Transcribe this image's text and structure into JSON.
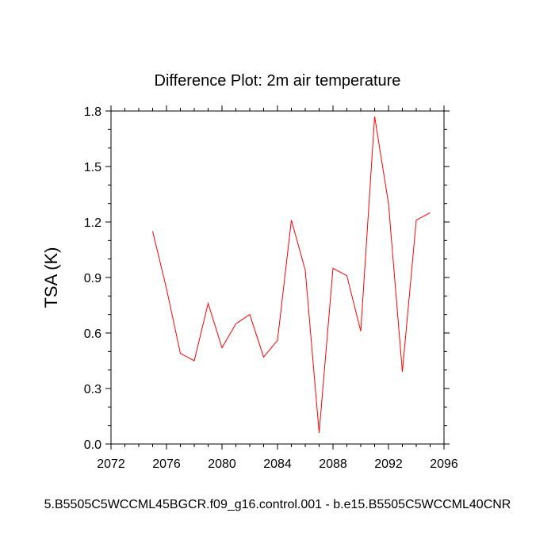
{
  "chart_data": {
    "type": "line",
    "title": "Difference Plot: 2m air temperature",
    "xlabel": "",
    "ylabel": "TSA  (K)",
    "subtitle": "5.B5505C5WCCML45BGCR.f09_g16.control.001 - b.e15.B5505C5WCCML40CNR",
    "xlim": [
      2072,
      2096
    ],
    "ylim": [
      0.0,
      1.8
    ],
    "xticks": [
      2072,
      2076,
      2080,
      2084,
      2088,
      2092,
      2096
    ],
    "yticks": [
      "0.0",
      "0.3",
      "0.6",
      "0.9",
      "1.2",
      "1.5",
      "1.8"
    ],
    "grid": false,
    "series": [
      {
        "color": "#ff0000",
        "x": [
          2075,
          2076,
          2077,
          2078,
          2079,
          2080,
          2081,
          2082,
          2083,
          2084,
          2085,
          2086,
          2087,
          2088,
          2089,
          2090,
          2091,
          2092,
          2093,
          2094,
          2095
        ],
        "y": [
          1.15,
          0.84,
          0.49,
          0.45,
          0.76,
          0.52,
          0.65,
          0.7,
          0.47,
          0.56,
          1.21,
          0.94,
          0.06,
          0.95,
          0.91,
          0.61,
          1.77,
          1.3,
          0.39,
          1.21,
          1.25
        ]
      }
    ]
  }
}
